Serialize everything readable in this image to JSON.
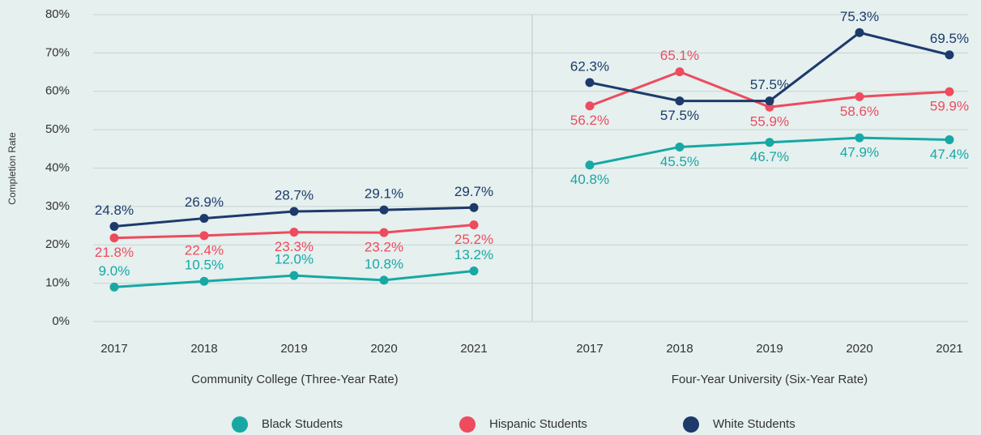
{
  "chart_data": {
    "type": "line",
    "ylabel": "Completion Rate",
    "ylim": [
      0,
      80
    ],
    "yticks": [
      {
        "value": 0,
        "label": "0%"
      },
      {
        "value": 10,
        "label": "10%"
      },
      {
        "value": 20,
        "label": "20%"
      },
      {
        "value": 30,
        "label": "30%"
      },
      {
        "value": 40,
        "label": "40%"
      },
      {
        "value": 50,
        "label": "50%"
      },
      {
        "value": 60,
        "label": "60%"
      },
      {
        "value": 70,
        "label": "70%"
      },
      {
        "value": 80,
        "label": "80%"
      }
    ],
    "grid": true,
    "series": [
      {
        "name": "Black Students",
        "color": "#17a8a4"
      },
      {
        "name": "Hispanic Students",
        "color": "#ee4b5e"
      },
      {
        "name": "White Students",
        "color": "#1d3a6b"
      }
    ],
    "panels": [
      {
        "xlabel": "Community College (Three-Year Rate)",
        "categories": [
          "2017",
          "2018",
          "2019",
          "2020",
          "2021"
        ],
        "series": [
          {
            "values": [
              9.0,
              10.5,
              12.0,
              10.8,
              13.2
            ],
            "value_labels": [
              "9.0%",
              "10.5%",
              "12.0%",
              "10.8%",
              "13.2%"
            ]
          },
          {
            "values": [
              21.8,
              22.4,
              23.3,
              23.2,
              25.2
            ],
            "value_labels": [
              "21.8%",
              "22.4%",
              "23.3%",
              "23.2%",
              "25.2%"
            ]
          },
          {
            "values": [
              24.8,
              26.9,
              28.7,
              29.1,
              29.7
            ],
            "value_labels": [
              "24.8%",
              "26.9%",
              "28.7%",
              "29.1%",
              "29.7%"
            ]
          }
        ]
      },
      {
        "xlabel": "Four-Year University (Six-Year Rate)",
        "categories": [
          "2017",
          "2018",
          "2019",
          "2020",
          "2021"
        ],
        "series": [
          {
            "values": [
              40.8,
              45.5,
              46.7,
              47.9,
              47.4
            ],
            "value_labels": [
              "40.8%",
              "45.5%",
              "46.7%",
              "47.9%",
              "47.4%"
            ]
          },
          {
            "values": [
              56.2,
              65.1,
              55.9,
              58.6,
              59.9
            ],
            "value_labels": [
              "56.2%",
              "65.1%",
              "55.9%",
              "58.6%",
              "59.9%"
            ]
          },
          {
            "values": [
              62.3,
              57.5,
              57.5,
              75.3,
              69.5
            ],
            "value_labels": [
              "62.3%",
              "57.5%",
              "57.5%",
              "75.3%",
              "69.5%"
            ]
          }
        ]
      }
    ]
  }
}
